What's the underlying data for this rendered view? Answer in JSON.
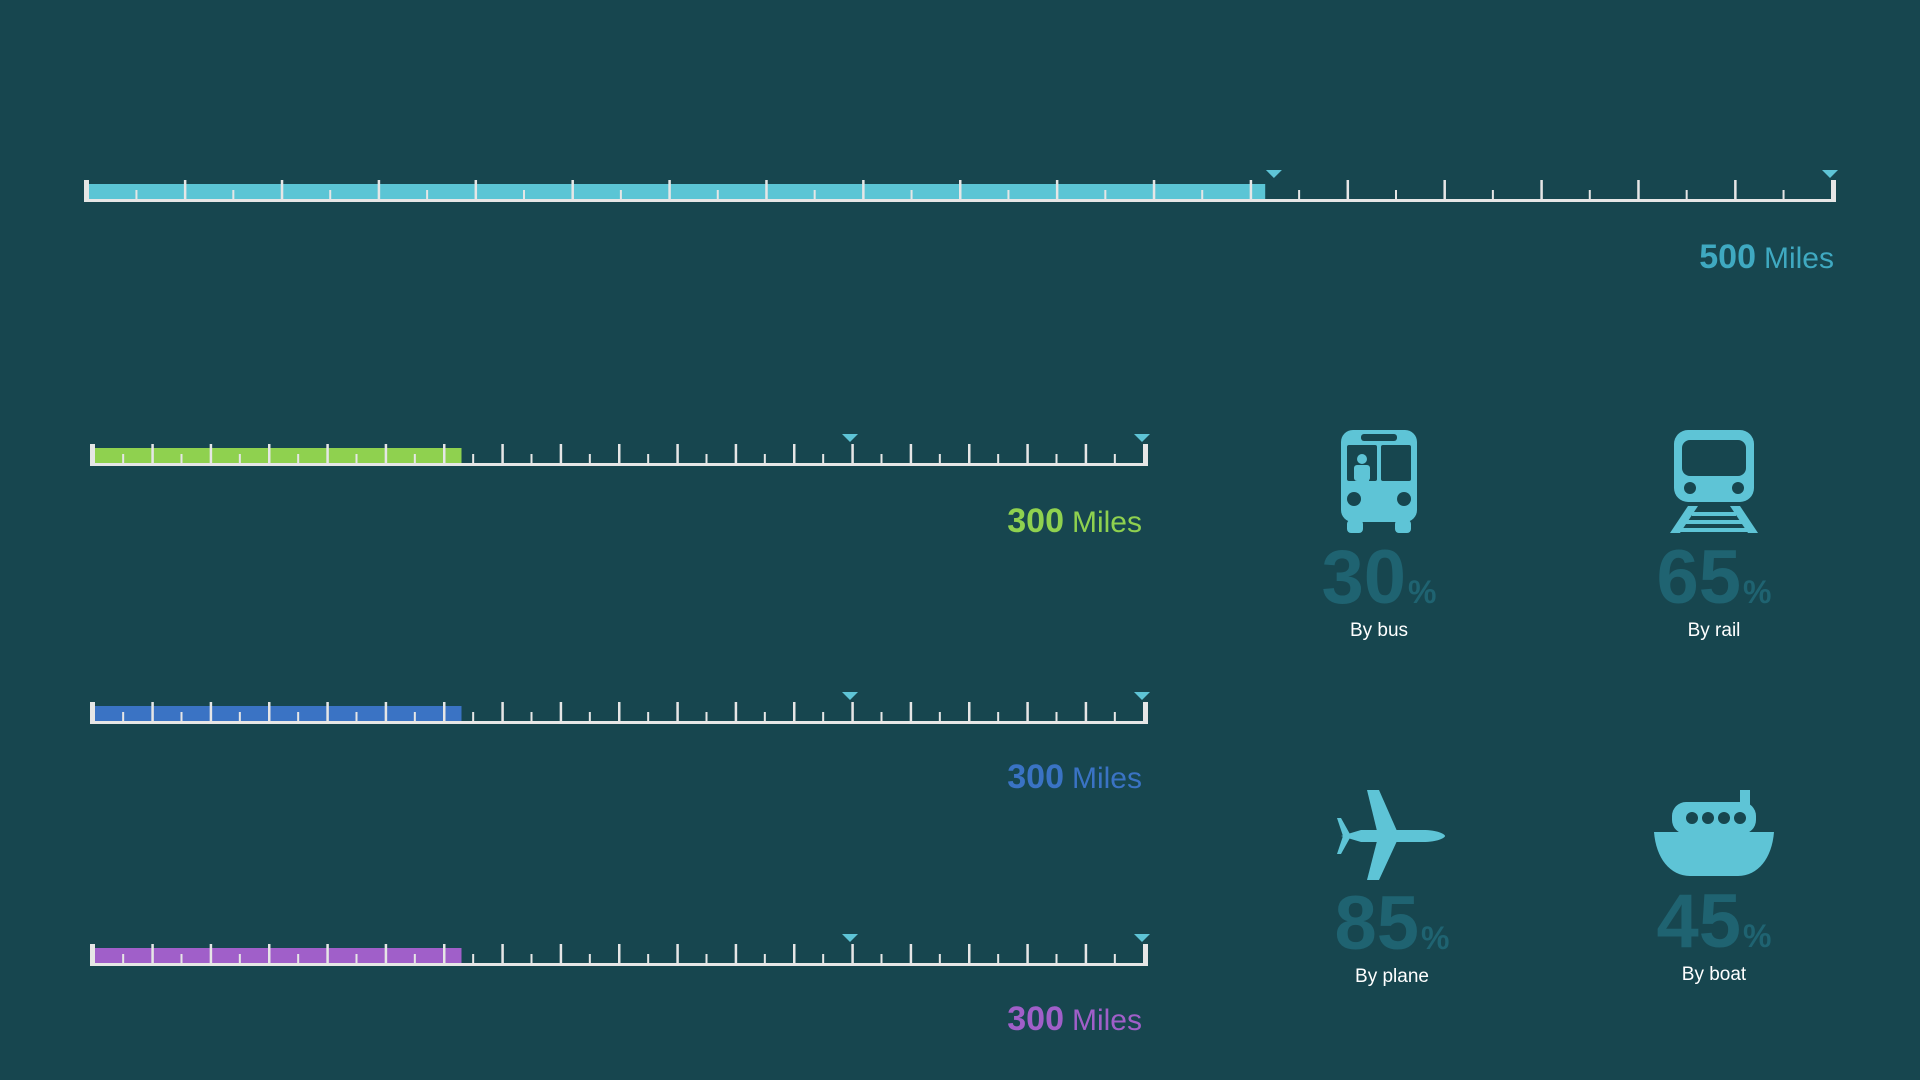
{
  "colors": {
    "background": "#17464f",
    "track": "#e6e6e6",
    "marker": "#5ec4d6",
    "icon": "#5ec4d6",
    "percent": "#1f6371"
  },
  "rulers": [
    {
      "id": "main",
      "fill_fraction": 0.675,
      "fill_color": "#5bc5d5",
      "value": "500",
      "unit": "Miles",
      "value_color": "#3fa9c1",
      "marker_fractions": [
        0.68,
        1.0
      ],
      "major_ticks": 18
    },
    {
      "id": "green",
      "fill_fraction": 0.35,
      "fill_color": "#8fd14f",
      "value": "300",
      "unit": "Miles",
      "value_color": "#8fd14f",
      "marker_fractions": [
        0.72,
        1.0
      ],
      "major_ticks": 18
    },
    {
      "id": "blue",
      "fill_fraction": 0.35,
      "fill_color": "#3a73c4",
      "value": "300",
      "unit": "Miles",
      "value_color": "#3a73c4",
      "marker_fractions": [
        0.72,
        1.0
      ],
      "major_ticks": 18
    },
    {
      "id": "purple",
      "fill_fraction": 0.35,
      "fill_color": "#a05fc9",
      "value": "300",
      "unit": "Miles",
      "value_color": "#a05fc9",
      "marker_fractions": [
        0.72,
        1.0
      ],
      "major_ticks": 18
    }
  ],
  "stats": [
    {
      "icon": "bus-icon",
      "percent": "30",
      "percent_value": 30,
      "sign": "%",
      "caption": "By bus"
    },
    {
      "icon": "train-icon",
      "percent": "65",
      "percent_value": 65,
      "sign": "%",
      "caption": "By rail"
    },
    {
      "icon": "plane-icon",
      "percent": "85",
      "percent_value": 85,
      "sign": "%",
      "caption": "By plane"
    },
    {
      "icon": "boat-icon",
      "percent": "45",
      "percent_value": 45,
      "sign": "%",
      "caption": "By boat"
    }
  ]
}
